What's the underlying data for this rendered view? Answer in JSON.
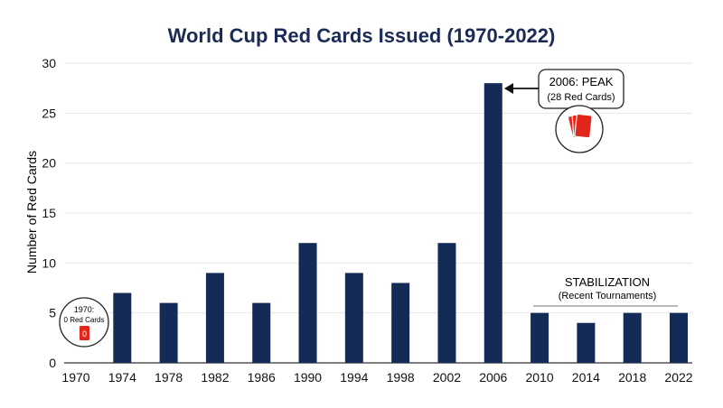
{
  "chart_data": {
    "type": "bar",
    "title": "World Cup Red Cards Issued (1970-2022)",
    "xlabel": "",
    "ylabel": "Number of Red Cards",
    "categories": [
      "1970",
      "1974",
      "1978",
      "1982",
      "1986",
      "1990",
      "1994",
      "1998",
      "2002",
      "2006",
      "2010",
      "2014",
      "2018",
      "2022"
    ],
    "values": [
      0,
      7,
      6,
      9,
      6,
      12,
      9,
      8,
      12,
      28,
      5,
      4,
      5,
      5
    ],
    "ylim": [
      0,
      30
    ],
    "yticks": [
      0,
      5,
      10,
      15,
      20,
      25,
      30
    ],
    "grid": true,
    "legend": "none",
    "annotations": {
      "peak": {
        "line1": "2006: PEAK",
        "line2": "(28 Red Cards)"
      },
      "first": {
        "line1": "1970:",
        "line2": "0 Red Cards",
        "card_text": "0"
      },
      "stabilization": {
        "line1": "STABILIZATION",
        "line2": "(Recent Tournaments)"
      }
    }
  },
  "colors": {
    "bar": "#142a57",
    "title": "#1b2b55",
    "grid": "#e4e6ec",
    "text": "#111111",
    "card": "#e1261c"
  },
  "icons": {
    "peak_icon": "red-cards-stack-icon",
    "first_icon": "red-card-icon"
  }
}
